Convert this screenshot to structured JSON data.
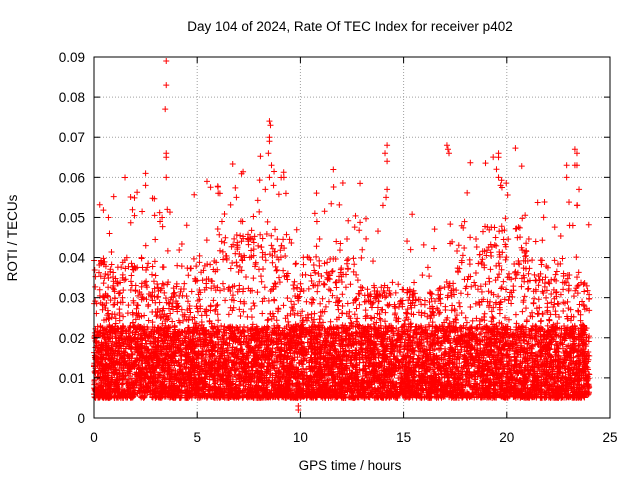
{
  "chart_data": {
    "type": "scatter",
    "title": "Day 104 of 2024, Rate Of TEC Index for receiver p402",
    "xlabel": "GPS time / hours",
    "ylabel": "ROTI / TECUs",
    "xlim": [
      0,
      25
    ],
    "ylim": [
      0,
      0.09
    ],
    "x_ticks": [
      0,
      5,
      10,
      15,
      20,
      25
    ],
    "x_tick_labels": [
      "0",
      "5",
      "10",
      "15",
      "20",
      "25"
    ],
    "y_ticks": [
      0,
      0.01,
      0.02,
      0.03,
      0.04,
      0.05,
      0.06,
      0.07,
      0.08,
      0.09
    ],
    "y_tick_labels": [
      "0",
      "0.01",
      "0.02",
      "0.03",
      "0.04",
      "0.05",
      "0.06",
      "0.07",
      "0.08",
      "0.09"
    ],
    "grid": true,
    "marker": "+",
    "color": "#ff0000",
    "data_x_range_hours": [
      0,
      24
    ],
    "typical_band": [
      0.005,
      0.025
    ],
    "generated_background_points": 9000,
    "notable_points": [
      {
        "x": 3.5,
        "y": 0.089
      },
      {
        "x": 3.5,
        "y": 0.083
      },
      {
        "x": 3.45,
        "y": 0.077
      },
      {
        "x": 3.5,
        "y": 0.066
      },
      {
        "x": 3.5,
        "y": 0.065
      },
      {
        "x": 3.5,
        "y": 0.06
      },
      {
        "x": 3.55,
        "y": 0.052
      },
      {
        "x": 3.3,
        "y": 0.05
      },
      {
        "x": 3.2,
        "y": 0.049
      },
      {
        "x": 2.5,
        "y": 0.061
      },
      {
        "x": 2.5,
        "y": 0.058
      },
      {
        "x": 0.7,
        "y": 0.05
      },
      {
        "x": 0.75,
        "y": 0.046
      },
      {
        "x": 6.1,
        "y": 0.056
      },
      {
        "x": 6.9,
        "y": 0.055
      },
      {
        "x": 6.2,
        "y": 0.049
      },
      {
        "x": 7.2,
        "y": 0.049
      },
      {
        "x": 8.5,
        "y": 0.074
      },
      {
        "x": 8.55,
        "y": 0.073
      },
      {
        "x": 8.5,
        "y": 0.07
      },
      {
        "x": 8.5,
        "y": 0.069
      },
      {
        "x": 8.45,
        "y": 0.066
      },
      {
        "x": 8.6,
        "y": 0.063
      },
      {
        "x": 8.5,
        "y": 0.06
      },
      {
        "x": 8.7,
        "y": 0.058
      },
      {
        "x": 8.3,
        "y": 0.057
      },
      {
        "x": 9.2,
        "y": 0.06
      },
      {
        "x": 9.3,
        "y": 0.056
      },
      {
        "x": 10.7,
        "y": 0.051
      },
      {
        "x": 10.8,
        "y": 0.049
      },
      {
        "x": 14.2,
        "y": 0.068
      },
      {
        "x": 14.1,
        "y": 0.066
      },
      {
        "x": 14.2,
        "y": 0.064
      },
      {
        "x": 14.2,
        "y": 0.057
      },
      {
        "x": 14.15,
        "y": 0.055
      },
      {
        "x": 14.0,
        "y": 0.053
      },
      {
        "x": 17.1,
        "y": 0.068
      },
      {
        "x": 17.15,
        "y": 0.067
      },
      {
        "x": 17.2,
        "y": 0.066
      },
      {
        "x": 19.6,
        "y": 0.066
      },
      {
        "x": 19.6,
        "y": 0.065
      },
      {
        "x": 19.5,
        "y": 0.062
      },
      {
        "x": 19.6,
        "y": 0.06
      },
      {
        "x": 19.7,
        "y": 0.058
      },
      {
        "x": 23.3,
        "y": 0.067
      },
      {
        "x": 23.4,
        "y": 0.066
      },
      {
        "x": 22.9,
        "y": 0.063
      },
      {
        "x": 23.4,
        "y": 0.063
      },
      {
        "x": 23.3,
        "y": 0.063
      },
      {
        "x": 22.9,
        "y": 0.06
      },
      {
        "x": 23.5,
        "y": 0.057
      },
      {
        "x": 23.4,
        "y": 0.053
      },
      {
        "x": 23.2,
        "y": 0.048
      },
      {
        "x": 9.9,
        "y": 0.003
      },
      {
        "x": 9.9,
        "y": 0.002
      }
    ]
  }
}
